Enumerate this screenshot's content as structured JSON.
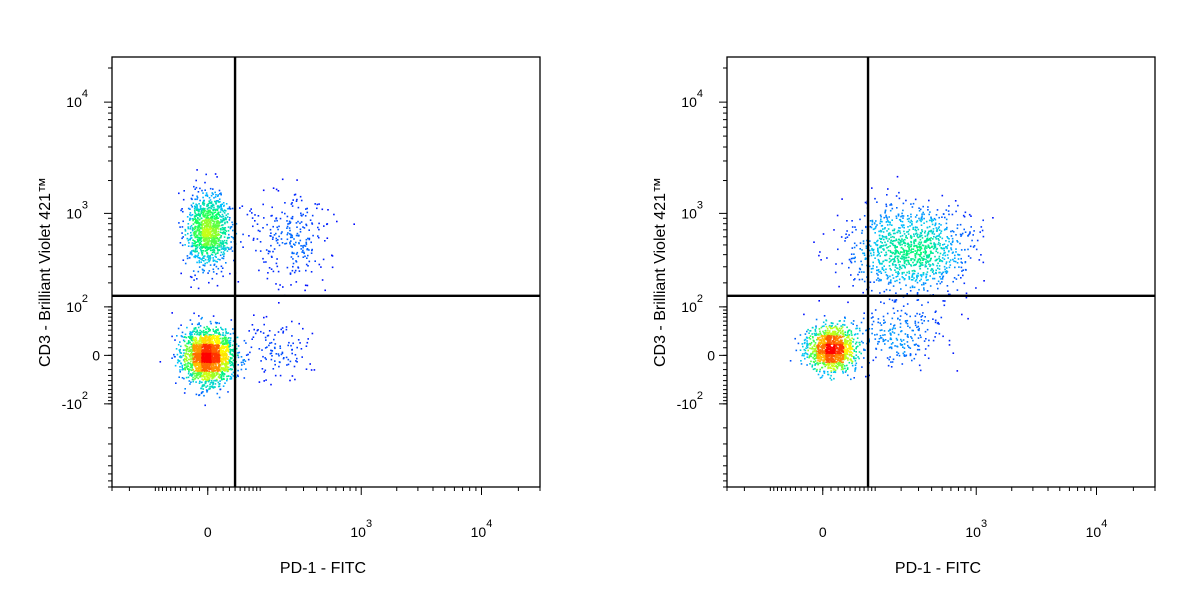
{
  "chart_data": [
    {
      "type": "scatter",
      "subtype": "flow-cytometry-density-dot-plot",
      "xlabel": "PD-1 - FITC",
      "ylabel": "CD3 - Brilliant Violet 421™",
      "x_scale": "biexponential",
      "y_scale": "biexponential",
      "xlim": [
        -300,
        30000
      ],
      "ylim": [
        -800,
        25000
      ],
      "x_ticks": [
        {
          "value": 0,
          "base": "0",
          "exp": ""
        },
        {
          "value": 1000,
          "base": "10",
          "exp": "3"
        },
        {
          "value": 10000,
          "base": "10",
          "exp": "4"
        }
      ],
      "y_ticks": [
        {
          "value": -100,
          "base": "-10",
          "exp": "2"
        },
        {
          "value": 0,
          "base": "0",
          "exp": ""
        },
        {
          "value": 100,
          "base": "10",
          "exp": "2"
        },
        {
          "value": 1000,
          "base": "10",
          "exp": "3"
        },
        {
          "value": 10000,
          "base": "10",
          "exp": "4"
        }
      ],
      "gates": {
        "x": 40,
        "y": 140
      },
      "color_scale": [
        "#0000ff",
        "#00bfff",
        "#00ff66",
        "#ffff00",
        "#ff8800",
        "#ff0000"
      ],
      "populations": [
        {
          "x": 0,
          "y": 0,
          "sx": 0.1,
          "sy": 0.12,
          "count": 2100
        },
        {
          "x": 0,
          "y": 700,
          "sx": 0.09,
          "sy": 0.16,
          "count": 1100
        },
        {
          "x": 220,
          "y": 600,
          "sx": 0.18,
          "sy": 0.2,
          "count": 260
        },
        {
          "x": 150,
          "y": 10,
          "sx": 0.14,
          "sy": 0.14,
          "count": 120
        }
      ],
      "grid": false,
      "legend": "none"
    },
    {
      "type": "scatter",
      "subtype": "flow-cytometry-density-dot-plot",
      "xlabel": "PD-1 - FITC",
      "ylabel": "CD3 - Brilliant Violet 421™",
      "x_scale": "biexponential",
      "y_scale": "biexponential",
      "xlim": [
        -300,
        30000
      ],
      "ylim": [
        -800,
        25000
      ],
      "x_ticks": [
        {
          "value": 0,
          "base": "0",
          "exp": ""
        },
        {
          "value": 1000,
          "base": "10",
          "exp": "3"
        },
        {
          "value": 10000,
          "base": "10",
          "exp": "4"
        }
      ],
      "y_ticks": [
        {
          "value": -100,
          "base": "-10",
          "exp": "2"
        },
        {
          "value": 0,
          "base": "0",
          "exp": ""
        },
        {
          "value": 100,
          "base": "10",
          "exp": "2"
        },
        {
          "value": 1000,
          "base": "10",
          "exp": "3"
        },
        {
          "value": 10000,
          "base": "10",
          "exp": "4"
        }
      ],
      "gates": {
        "x": 80,
        "y": 140
      },
      "color_scale": [
        "#0000ff",
        "#00bfff",
        "#00ff66",
        "#ffff00",
        "#ff8800",
        "#ff0000"
      ],
      "populations": [
        {
          "x": 10,
          "y": 10,
          "sx": 0.1,
          "sy": 0.1,
          "count": 1200
        },
        {
          "x": 250,
          "y": 450,
          "sx": 0.24,
          "sy": 0.2,
          "count": 1150
        },
        {
          "x": 200,
          "y": 30,
          "sx": 0.18,
          "sy": 0.14,
          "count": 220
        }
      ],
      "grid": false,
      "legend": "none"
    }
  ]
}
